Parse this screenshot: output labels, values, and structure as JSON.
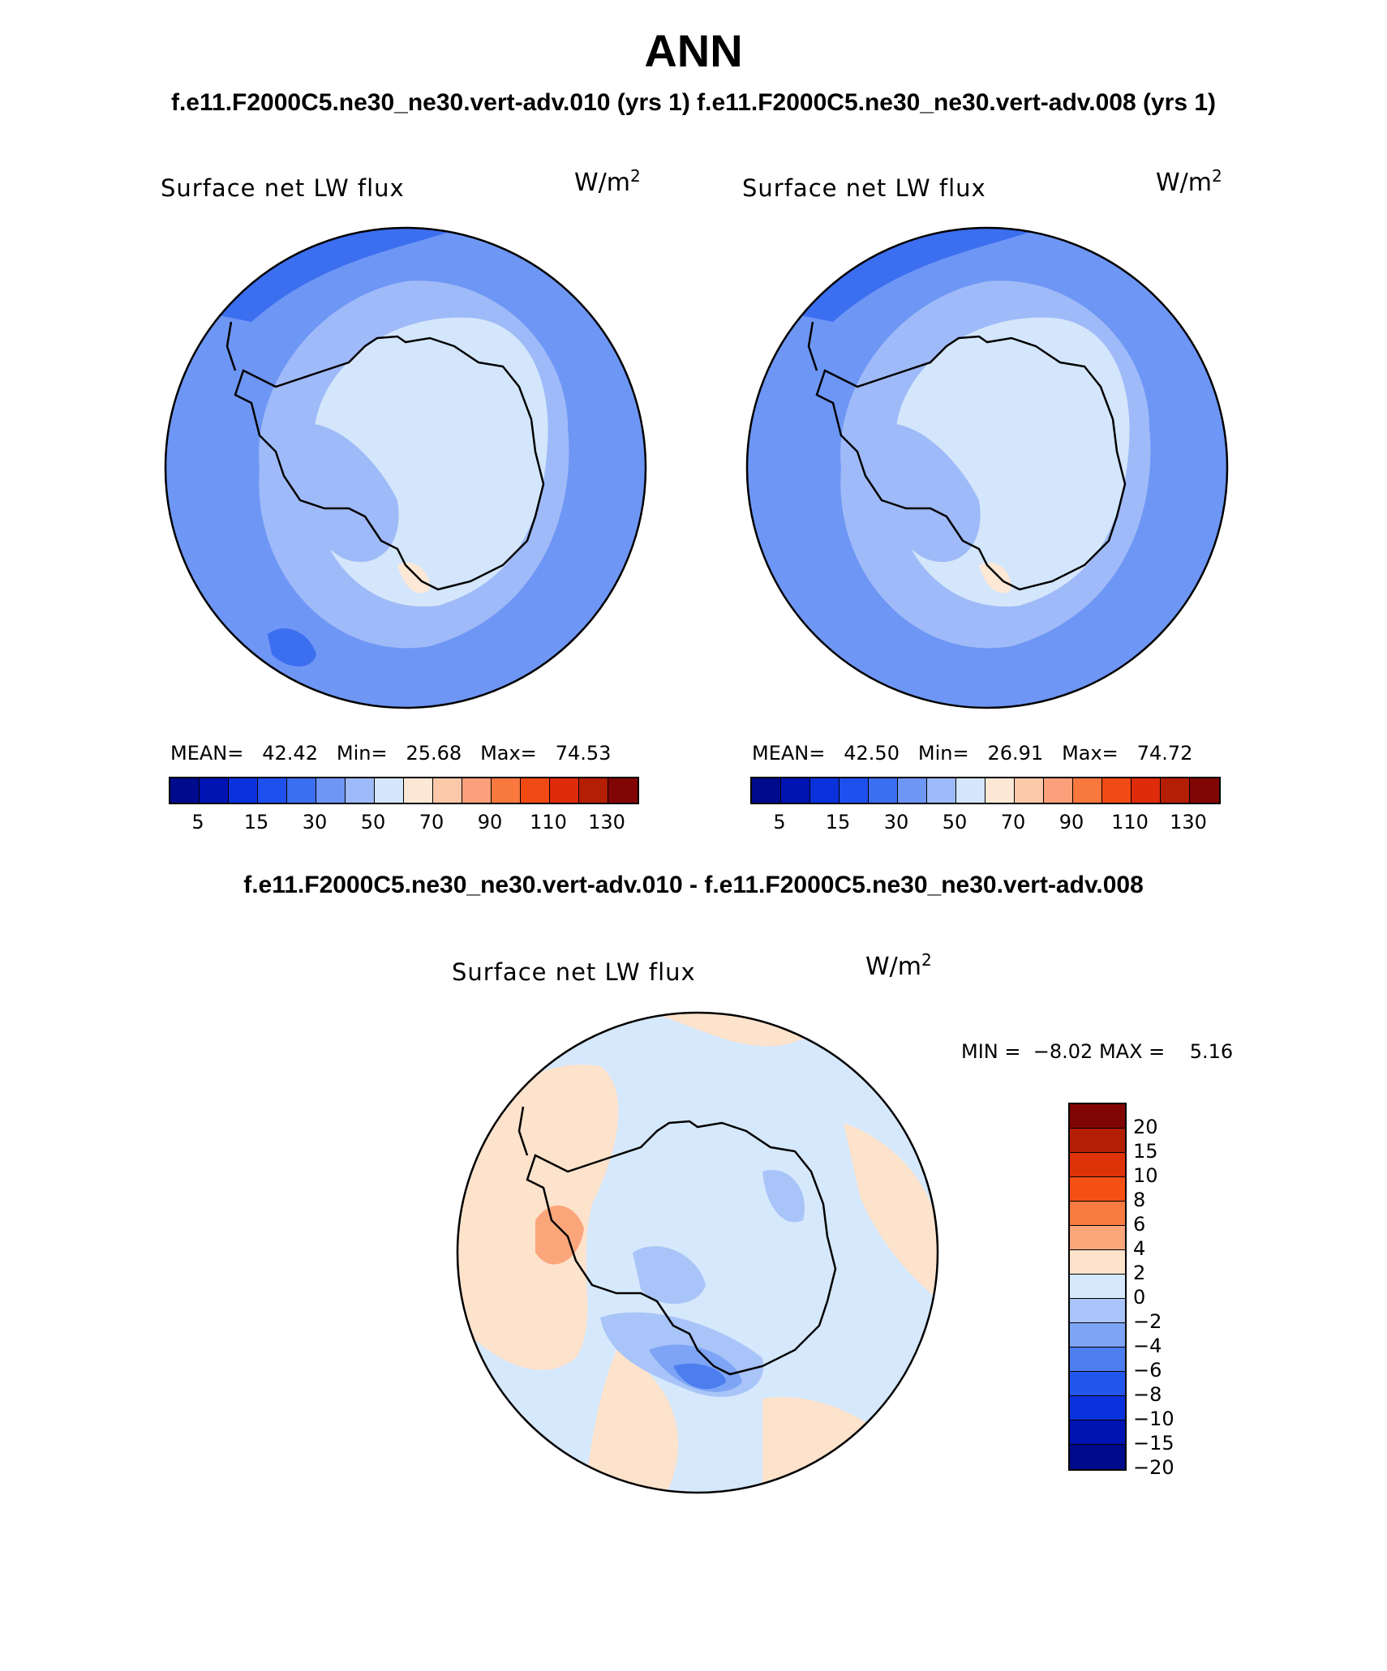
{
  "title": "ANN",
  "subtitle": "f.e11.F2000C5.ne30_ne30.vert-adv.010 (yrs 1) f.e11.F2000C5.ne30_ne30.vert-adv.008 (yrs 1)",
  "diff_title": "f.e11.F2000C5.ne30_ne30.vert-adv.010 - f.e11.F2000C5.ne30_ne30.vert-adv.008",
  "panels": [
    {
      "label": "Surface net LW flux",
      "units_base": "W/m",
      "units_exp": "2",
      "mean_label": "MEAN=",
      "mean": "42.42",
      "min_label": "Min=",
      "min": "25.68",
      "max_label": "Max=",
      "max": "74.53"
    },
    {
      "label": "Surface net LW flux",
      "units_base": "W/m",
      "units_exp": "2",
      "mean_label": "MEAN=",
      "mean": "42.50",
      "min_label": "Min=",
      "min": "26.91",
      "max_label": "Max=",
      "max": "74.72"
    }
  ],
  "diff_panel": {
    "label": "Surface net LW flux",
    "units_base": "W/m",
    "units_exp": "2",
    "min_label": "MIN =",
    "min": "−8.02",
    "max_label": "MAX =",
    "max": "5.16"
  },
  "colorbar": {
    "colors": [
      "#000a8c",
      "#0014b4",
      "#0a32dc",
      "#1e50f0",
      "#3c6ef0",
      "#6e96f5",
      "#9fbaf8",
      "#d4e6fb",
      "#fde8d6",
      "#fcc8aa",
      "#fba07a",
      "#f9783e",
      "#f24a14",
      "#de2b0a",
      "#b41e05",
      "#820505"
    ],
    "labels": [
      "5",
      "15",
      "30",
      "50",
      "70",
      "90",
      "110",
      "130"
    ]
  },
  "diff_colorbar": {
    "colors": [
      "#820505",
      "#b41e05",
      "#de3208",
      "#f55014",
      "#f87b40",
      "#fba67a",
      "#fde2cc",
      "#d6e8fb",
      "#a8c4f8",
      "#7ea4f5",
      "#4c7ef0",
      "#2256ec",
      "#0a32dc",
      "#0014b4",
      "#000a8c"
    ],
    "labels": [
      "20",
      "15",
      "10",
      "8",
      "6",
      "4",
      "2",
      "0",
      "−2",
      "−4",
      "−6",
      "−8",
      "−10",
      "−15",
      "−20"
    ]
  },
  "map_colors": {
    "ocean_outer": "#6e96f5",
    "ocean_mid": "#9fbaf8",
    "ice_shelf": "#d4e6fb",
    "dark_patch": "#3c6ef0",
    "warm_patch": "#fde8d6",
    "diff_light_blue": "#d6e8fb",
    "diff_peach": "#fde2cc",
    "diff_orange": "#fba67a",
    "diff_blue": "#a8c4f8",
    "diff_mid_blue": "#7ea4f5",
    "diff_dark_blue": "#4c7ef0"
  }
}
